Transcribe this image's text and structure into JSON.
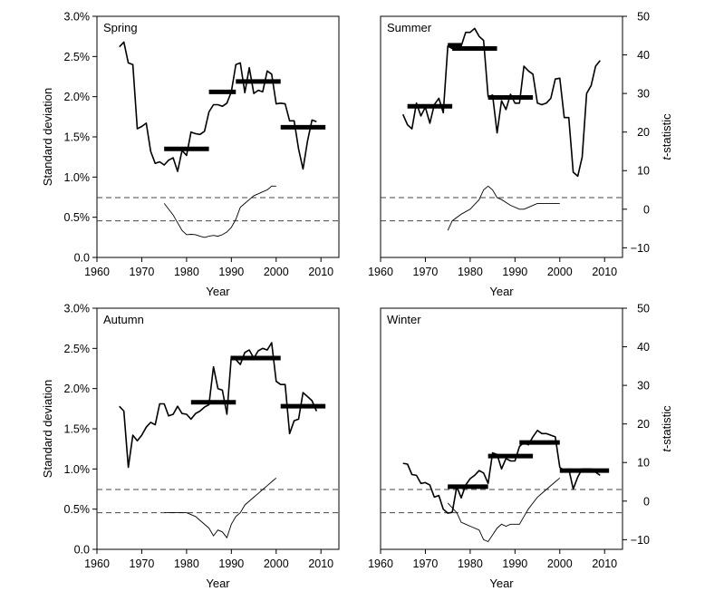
{
  "chart_data": {
    "type": "line",
    "layout": "2x2 panels",
    "grid": false,
    "x_axis": {
      "label": "Year",
      "range": [
        1960,
        2014
      ],
      "ticks": [
        1960,
        1970,
        1980,
        1990,
        2000,
        2010
      ]
    },
    "left_axis": {
      "label": "Standard deviation",
      "range": [
        0.0,
        3.0
      ],
      "ticks": [
        0.0,
        0.5,
        1.0,
        1.5,
        2.0,
        2.5,
        3.0
      ],
      "tick_labels": [
        "0.0",
        "0.5%",
        "1.0%",
        "1.5%",
        "2.0%",
        "2.5%",
        "3.0%"
      ]
    },
    "right_axis": {
      "label_italic": "t",
      "label_rest": "-statistic",
      "range": [
        -12.5,
        50
      ],
      "ticks": [
        -10,
        0,
        10,
        20,
        30,
        40,
        50
      ],
      "tick_labels": [
        "−10",
        "0",
        "10",
        "20",
        "30",
        "40",
        "50"
      ]
    },
    "critical_lines_t": [
      3,
      -3
    ],
    "panels": [
      {
        "label": "Spring",
        "std_series": {
          "x": [
            1965,
            1966,
            1967,
            1968,
            1969,
            1970,
            1971,
            1972,
            1973,
            1974,
            1975,
            1976,
            1977,
            1978,
            1979,
            1980,
            1981,
            1982,
            1983,
            1984,
            1985,
            1986,
            1987,
            1988,
            1989,
            1990,
            1991,
            1992,
            1993,
            1994,
            1995,
            1996,
            1997,
            1998,
            1999,
            2000,
            2001,
            2002,
            2003,
            2004,
            2005,
            2006,
            2007,
            2008,
            2009
          ],
          "y": [
            2.62,
            2.68,
            2.42,
            2.4,
            1.6,
            1.63,
            1.67,
            1.32,
            1.17,
            1.19,
            1.15,
            1.21,
            1.24,
            1.07,
            1.33,
            1.27,
            1.56,
            1.54,
            1.53,
            1.57,
            1.81,
            1.9,
            1.9,
            1.88,
            1.92,
            2.06,
            2.4,
            2.42,
            2.05,
            2.36,
            2.04,
            2.08,
            2.06,
            2.32,
            2.28,
            1.91,
            1.92,
            1.91,
            1.7,
            1.7,
            1.35,
            1.1,
            1.45,
            1.71,
            1.69
          ]
        },
        "regime_means": [
          {
            "x0": 1975,
            "x1": 1985,
            "y": 1.35
          },
          {
            "x0": 1985,
            "x1": 1991,
            "y": 2.06
          },
          {
            "x0": 1991,
            "x1": 2001,
            "y": 2.19
          },
          {
            "x0": 2001,
            "x1": 2011,
            "y": 1.62
          }
        ],
        "t_series": {
          "x": [
            1975,
            1977,
            1978,
            1979,
            1980,
            1981,
            1982,
            1983,
            1984,
            1985,
            1986,
            1987,
            1988,
            1989,
            1990,
            1991,
            1992,
            1993,
            1994,
            1995,
            1996,
            1997,
            1998,
            1999,
            2000
          ],
          "y": [
            1.5,
            -1.5,
            -3.5,
            -5.5,
            -6.6,
            -6.5,
            -6.6,
            -7.0,
            -7.3,
            -7.0,
            -6.8,
            -7.0,
            -6.6,
            -5.9,
            -4.7,
            -2.6,
            0.5,
            1.5,
            2.5,
            3.5,
            4.0,
            4.5,
            5.0,
            6.0,
            6.0
          ]
        }
      },
      {
        "label": "Summer",
        "std_series": {
          "x": [
            1965,
            1966,
            1967,
            1968,
            1969,
            1970,
            1971,
            1972,
            1973,
            1974,
            1975,
            1976,
            1977,
            1978,
            1979,
            1980,
            1981,
            1982,
            1983,
            1984,
            1985,
            1986,
            1987,
            1988,
            1989,
            1990,
            1991,
            1992,
            1993,
            1994,
            1995,
            1996,
            1997,
            1998,
            1999,
            2000,
            2001,
            2002,
            2003,
            2004,
            2005,
            2006,
            2007,
            2008,
            2009
          ],
          "y": [
            1.78,
            1.65,
            1.6,
            1.92,
            1.76,
            1.87,
            1.67,
            1.9,
            1.98,
            1.8,
            2.63,
            2.6,
            2.62,
            2.63,
            2.8,
            2.8,
            2.85,
            2.75,
            2.7,
            2.0,
            2.02,
            1.55,
            1.95,
            1.84,
            2.03,
            1.92,
            1.92,
            2.38,
            2.32,
            2.28,
            1.92,
            1.9,
            1.92,
            1.98,
            2.22,
            2.23,
            1.74,
            1.74,
            1.06,
            1.01,
            1.25,
            2.04,
            2.14,
            2.38,
            2.45
          ]
        },
        "regime_means": [
          {
            "x0": 1966,
            "x1": 1976,
            "y": 1.88
          },
          {
            "x0": 1975,
            "x1": 1978,
            "y": 2.64
          },
          {
            "x0": 1976,
            "x1": 1986,
            "y": 2.6
          },
          {
            "x0": 1984,
            "x1": 1994,
            "y": 1.99
          }
        ],
        "t_series": {
          "x": [
            1975,
            1976,
            1978,
            1980,
            1982,
            1983,
            1984,
            1985,
            1986,
            1987,
            1989,
            1991,
            1992,
            1993,
            1995,
            1997,
            1999,
            2000
          ],
          "y": [
            -5.5,
            -3.0,
            -1.3,
            0.0,
            2.5,
            5.0,
            6.0,
            5.0,
            3.0,
            2.5,
            1.0,
            0.0,
            0.0,
            0.5,
            1.5,
            1.5,
            1.5,
            1.5
          ]
        }
      },
      {
        "label": "Autumn",
        "std_series": {
          "x": [
            1965,
            1966,
            1967,
            1968,
            1969,
            1970,
            1971,
            1972,
            1973,
            1974,
            1975,
            1976,
            1977,
            1978,
            1979,
            1980,
            1981,
            1982,
            1983,
            1984,
            1985,
            1986,
            1987,
            1988,
            1989,
            1990,
            1991,
            1992,
            1993,
            1994,
            1995,
            1996,
            1997,
            1998,
            1999,
            2000,
            2001,
            2002,
            2003,
            2004,
            2005,
            2006,
            2007,
            2008,
            2009
          ],
          "y": [
            1.78,
            1.72,
            1.02,
            1.42,
            1.35,
            1.42,
            1.52,
            1.58,
            1.55,
            1.81,
            1.81,
            1.66,
            1.68,
            1.78,
            1.69,
            1.68,
            1.62,
            1.69,
            1.72,
            1.77,
            1.8,
            2.27,
            2.0,
            1.98,
            1.68,
            2.4,
            2.36,
            2.3,
            2.45,
            2.48,
            2.38,
            2.47,
            2.5,
            2.48,
            2.57,
            2.09,
            2.05,
            2.05,
            1.44,
            1.6,
            1.62,
            1.95,
            1.9,
            1.85,
            1.72
          ]
        },
        "regime_means": [
          {
            "x0": 1981,
            "x1": 1991,
            "y": 1.83
          },
          {
            "x0": 1990,
            "x1": 2001,
            "y": 2.38
          },
          {
            "x0": 2001,
            "x1": 2011,
            "y": 1.78
          }
        ],
        "t_series": {
          "x": [
            1975,
            1980,
            1982,
            1985,
            1986,
            1987,
            1988,
            1989,
            1990,
            1991,
            1992,
            1993,
            1995,
            1996,
            1997,
            1998,
            1999,
            2000
          ],
          "y": [
            -3.0,
            -3.0,
            -4.0,
            -7.0,
            -9.0,
            -7.5,
            -8.0,
            -9.5,
            -6.0,
            -4.0,
            -3.0,
            -1.0,
            1.0,
            2.0,
            3.0,
            4.0,
            5.0,
            6.0
          ]
        }
      },
      {
        "label": "Winter",
        "std_series": {
          "x": [
            1965,
            1966,
            1967,
            1968,
            1969,
            1970,
            1971,
            1972,
            1973,
            1974,
            1975,
            1976,
            1977,
            1978,
            1979,
            1980,
            1981,
            1982,
            1983,
            1984,
            1985,
            1986,
            1987,
            1988,
            1989,
            1990,
            1991,
            1992,
            1993,
            1994,
            1995,
            1996,
            1997,
            1998,
            1999,
            2000,
            2001,
            2002,
            2003,
            2004,
            2005,
            2006,
            2007,
            2008,
            2009
          ],
          "y": [
            1.07,
            1.06,
            0.93,
            0.92,
            0.82,
            0.83,
            0.8,
            0.65,
            0.67,
            0.5,
            0.45,
            0.46,
            0.78,
            0.64,
            0.8,
            0.88,
            0.92,
            0.98,
            0.95,
            0.82,
            1.2,
            1.18,
            1.0,
            1.13,
            1.1,
            1.1,
            1.28,
            1.33,
            1.3,
            1.4,
            1.48,
            1.44,
            1.44,
            1.42,
            1.4,
            1.02,
            0.98,
            1.0,
            0.75,
            0.9,
            1.0,
            1.0,
            1.0,
            0.96,
            0.92
          ]
        },
        "regime_means": [
          {
            "x0": 1975,
            "x1": 1984,
            "y": 0.78
          },
          {
            "x0": 1984,
            "x1": 1994,
            "y": 1.16
          },
          {
            "x0": 1991,
            "x1": 2000,
            "y": 1.33
          },
          {
            "x0": 2000,
            "x1": 2011,
            "y": 0.98
          }
        ],
        "t_series": {
          "x": [
            1975,
            1977,
            1978,
            1979,
            1980,
            1982,
            1983,
            1984,
            1986,
            1987,
            1988,
            1989,
            1990,
            1991,
            1992,
            1993,
            1995,
            1997,
            1999,
            2000
          ],
          "y": [
            -0.5,
            -3.0,
            -5.5,
            -6.0,
            -6.5,
            -7.5,
            -10.0,
            -10.5,
            -7.0,
            -6.0,
            -6.5,
            -6.0,
            -6.0,
            -6.0,
            -4.0,
            -2.0,
            1.0,
            3.0,
            5.0,
            6.0
          ]
        }
      }
    ]
  }
}
